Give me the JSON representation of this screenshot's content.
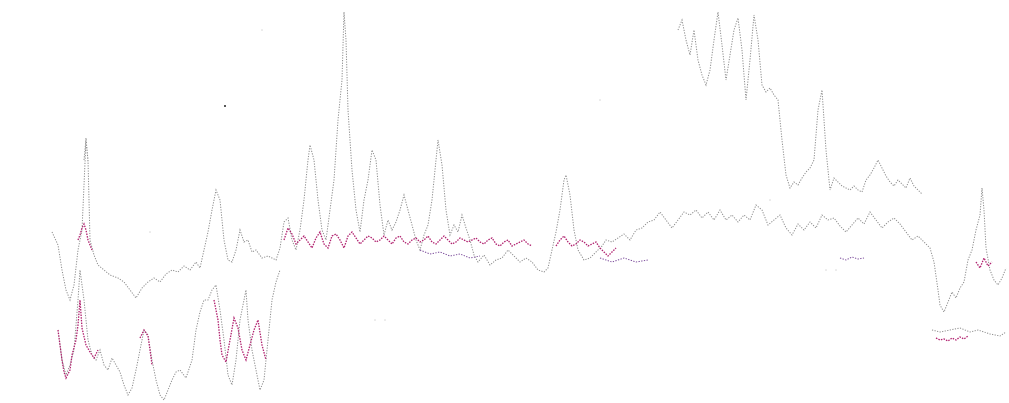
{
  "document": {
    "kind": "scanned waveform trace strip",
    "ref_label_upper": "",
    "ref_label_lower": ""
  },
  "colors": {
    "background": "#ffffff",
    "trace_gray": "#8c8c8c",
    "trace_magenta": "#b0206e",
    "trace_violet": "#7a4a9a"
  }
}
